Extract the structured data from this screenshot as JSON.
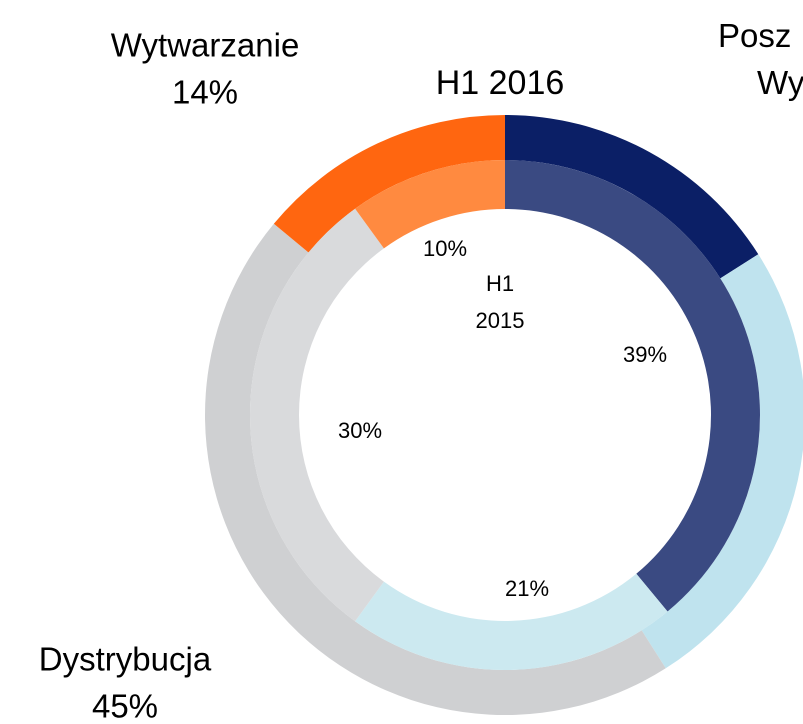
{
  "chart_data": {
    "type": "donut",
    "categories": [
      "Posz Wy",
      null,
      "Dystrybucja",
      "Wytwarzanie"
    ],
    "series": [
      {
        "name": "H1 2016",
        "ring": "outer",
        "colors": [
          "#0b1f66",
          "#bfe3ee",
          "#cfd0d2",
          "#ff6610"
        ],
        "values": [
          16,
          25,
          45,
          14
        ],
        "value_labels": [
          null,
          null,
          "45%",
          "14%"
        ]
      },
      {
        "name": "H1 2015",
        "ring": "inner",
        "colors": [
          "#3a4a82",
          "#cce9f0",
          "#d9dadc",
          "#ff8a40"
        ],
        "values": [
          39,
          21,
          30,
          10
        ],
        "value_labels": [
          "39%",
          "21%",
          "30%",
          "10%"
        ]
      }
    ]
  }
}
